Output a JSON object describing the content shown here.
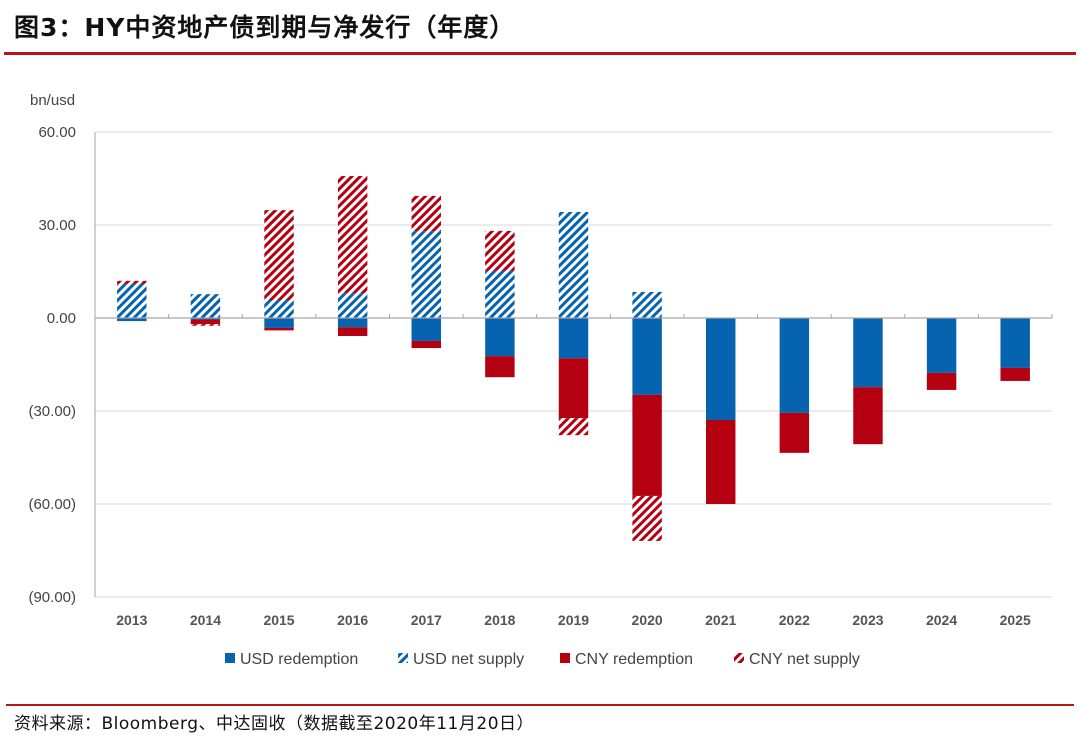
{
  "header": {
    "title": "图3：HY中资地产债到期与净发行（年度）"
  },
  "footer": {
    "source": "资料来源：Bloomberg、中达固收（数据截至2020年11月20日）"
  },
  "colors": {
    "usd": "#0563b0",
    "cny": "#b50012",
    "rule": "#b5161b"
  },
  "chart_data": {
    "type": "bar",
    "stacked": true,
    "title": "HY中资地产债到期与净发行（年度）",
    "ylabel": "bn/usd",
    "xlabel": "",
    "ylim": [
      -90,
      60
    ],
    "yticks": [
      60,
      30,
      0,
      -30,
      -60,
      -90
    ],
    "ytick_labels": [
      "60.00",
      "30.00",
      "0.00",
      "(30.00)",
      "(60.00)",
      "(90.00)"
    ],
    "grid": true,
    "legend_position": "bottom",
    "categories": [
      "2013",
      "2014",
      "2015",
      "2016",
      "2017",
      "2018",
      "2019",
      "2020",
      "2021",
      "2022",
      "2023",
      "2024",
      "2025"
    ],
    "series": [
      {
        "name": "USD redemption",
        "style": "solid",
        "color": "usd",
        "values": [
          -1.0,
          -0.5,
          -3.2,
          -3.0,
          -7.4,
          -12.3,
          -13.0,
          -24.8,
          -32.9,
          -30.6,
          -22.3,
          -17.7,
          -16.1
        ]
      },
      {
        "name": "USD net supply",
        "style": "hatched",
        "color": "usd",
        "values": [
          11.0,
          7.7,
          5.8,
          8.0,
          28.0,
          15.2,
          34.2,
          8.4,
          0,
          0,
          0,
          0,
          0
        ]
      },
      {
        "name": "CNY redemption",
        "style": "solid",
        "color": "cny",
        "values": [
          0,
          -1.5,
          -0.8,
          -2.8,
          -2.3,
          -6.8,
          -19.3,
          -32.6,
          -27.1,
          -12.9,
          -18.4,
          -5.5,
          -4.2
        ]
      },
      {
        "name": "CNY net supply",
        "style": "hatched",
        "color": "cny",
        "values": [
          1.0,
          -0.5,
          29.0,
          37.8,
          11.4,
          12.9,
          -5.5,
          -14.5,
          0,
          0,
          0,
          0,
          0
        ]
      }
    ]
  }
}
